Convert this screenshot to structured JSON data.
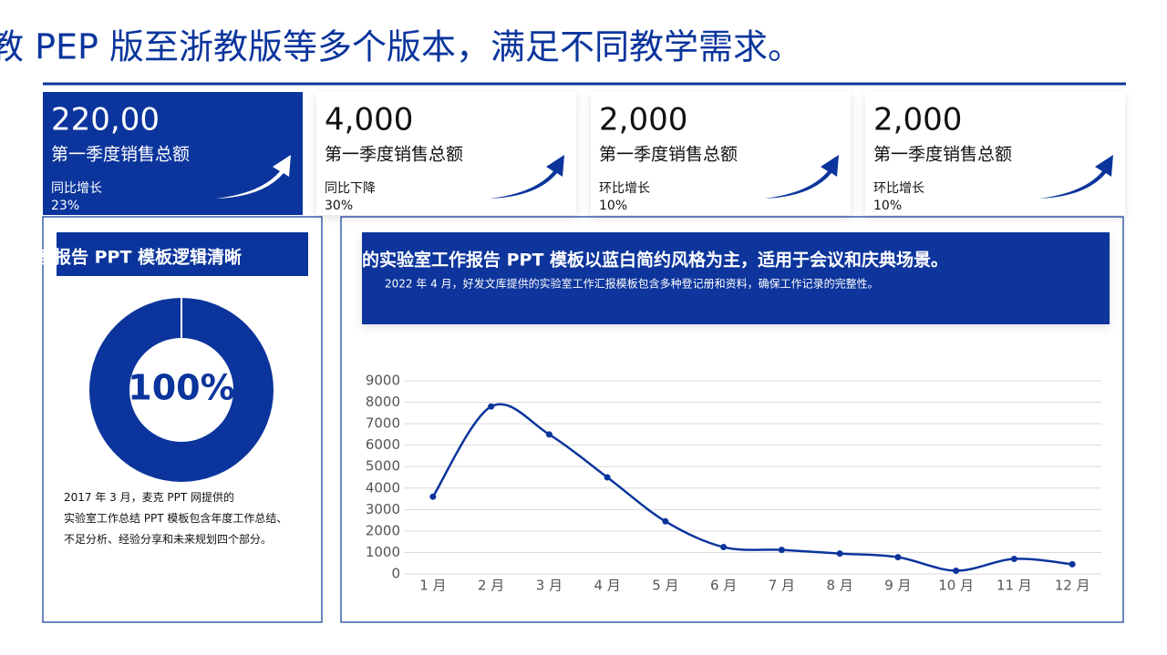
{
  "header": {
    "title": "教 PEP 版至浙教版等多个版本，满足不同教学需求。"
  },
  "cards": [
    {
      "value": "220,00",
      "label": "第一季度销售总额",
      "change_label": "同比增长",
      "change": "23%"
    },
    {
      "value": "4,000",
      "label": "第一季度销售总额",
      "change_label": "同比下降",
      "change": "30%"
    },
    {
      "value": "2,000",
      "label": "第一季度销售总额",
      "change_label": "环比增长",
      "change": "10%"
    },
    {
      "value": "2,000",
      "label": "第一季度销售总额",
      "change_label": "环比增长",
      "change": "10%"
    }
  ],
  "left_panel": {
    "heading": "室报告 PPT 模板逻辑清晰",
    "text": "2017 年 3 月，麦克 PPT 网提供的实验室工作总结 PPT 模板包含年度工作总结、不足分析、经验分享和未来规划四个部分。"
  },
  "right_panel": {
    "heading": "的实验室工作报告 PPT 模板以蓝白简约风格为主，适用于会议和庆典场景。",
    "subtitle": "2022 年 4 月，好发文库提供的实验室工作汇报模板包含多种登记册和资料，确保工作记录的完整性。"
  },
  "chart_data": [
    {
      "type": "pie",
      "categories": [
        null
      ],
      "values": [
        100
      ],
      "value_labels": [
        "100%"
      ],
      "color": "#0b359c"
    },
    {
      "type": "line",
      "categories": [
        "1 月",
        "2 月",
        "3 月",
        "4 月",
        "5 月",
        "6 月",
        "7 月",
        "8 月",
        "9 月",
        "10 月",
        "11 月",
        "12 月"
      ],
      "values": [
        3600,
        7800,
        6500,
        4500,
        2450,
        1250,
        1120,
        950,
        780,
        150,
        700,
        450
      ],
      "color": "#0b359c",
      "ylim": [
        0,
        9000
      ],
      "yticks": [
        0,
        1000,
        2000,
        3000,
        4000,
        5000,
        6000,
        7000,
        8000,
        9000
      ],
      "grid": true
    }
  ]
}
